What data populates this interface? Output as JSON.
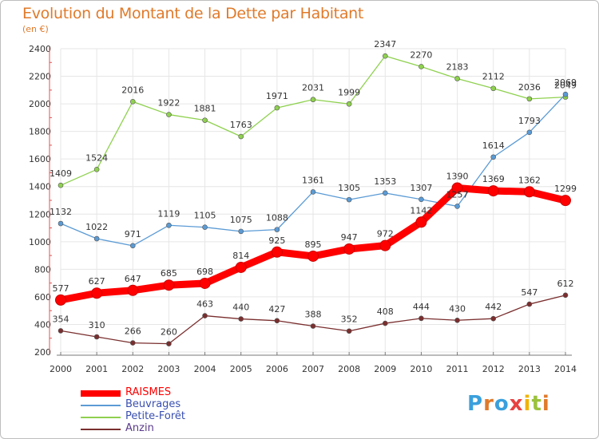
{
  "chart_data": {
    "type": "line",
    "title": "Evolution du Montant de la Dette par Habitant",
    "subtitle": "(en €)",
    "x": [
      "2000",
      "2001",
      "2002",
      "2003",
      "2004",
      "2005",
      "2006",
      "2007",
      "2008",
      "2009",
      "2010",
      "2011",
      "2012",
      "2013",
      "2014"
    ],
    "ylim": [
      200,
      2400
    ],
    "yticks": [
      "200",
      "400",
      "600",
      "800",
      "1000",
      "1200",
      "1400",
      "1600",
      "1800",
      "2000",
      "2200",
      "2400"
    ],
    "grid": true,
    "legend_position": "bottom-left",
    "series": [
      {
        "name": "RAISMES",
        "color": "#ff0000",
        "values": [
          577,
          627,
          647,
          685,
          698,
          814,
          925,
          895,
          947,
          972,
          1142,
          1390,
          1369,
          1362,
          1299
        ],
        "labels": [
          "577",
          "627",
          "647",
          "685",
          "698",
          "814",
          "925",
          "895",
          "947",
          "972",
          "1142",
          "1390",
          "1369",
          "1362",
          "1299"
        ]
      },
      {
        "name": "Beuvrages",
        "color": "#5b9bd5",
        "values": [
          1132,
          1022,
          971,
          1119,
          1105,
          1075,
          1088,
          1361,
          1305,
          1353,
          1307,
          1257,
          1614,
          1793,
          2069
        ],
        "labels": [
          "1132",
          "1022",
          "971",
          "1119",
          "1105",
          "1075",
          "1088",
          "1361",
          "1305",
          "1353",
          "1307",
          "1257",
          "1614",
          "1793",
          "2069"
        ]
      },
      {
        "name": "Petite-Forêt",
        "color": "#8fd14f",
        "values": [
          1409,
          1524,
          2016,
          1922,
          1881,
          1763,
          1971,
          2031,
          1999,
          2347,
          2270,
          2183,
          2112,
          2036,
          2049
        ],
        "labels": [
          "1409",
          "1524",
          "2016",
          "1922",
          "1881",
          "1763",
          "1971",
          "2031",
          "1999",
          "2347",
          "2270",
          "2183",
          "2112",
          "2036",
          "2049"
        ]
      },
      {
        "name": "Anzin",
        "color": "#7a2e2e",
        "values": [
          354,
          310,
          266,
          260,
          463,
          440,
          427,
          388,
          352,
          408,
          444,
          430,
          442,
          547,
          612
        ],
        "labels": [
          "354",
          "310",
          "266",
          "260",
          "463",
          "440",
          "427",
          "388",
          "352",
          "408",
          "444",
          "430",
          "442",
          "547",
          "612"
        ]
      }
    ]
  },
  "branding": {
    "logo_text": "Proxiti"
  }
}
